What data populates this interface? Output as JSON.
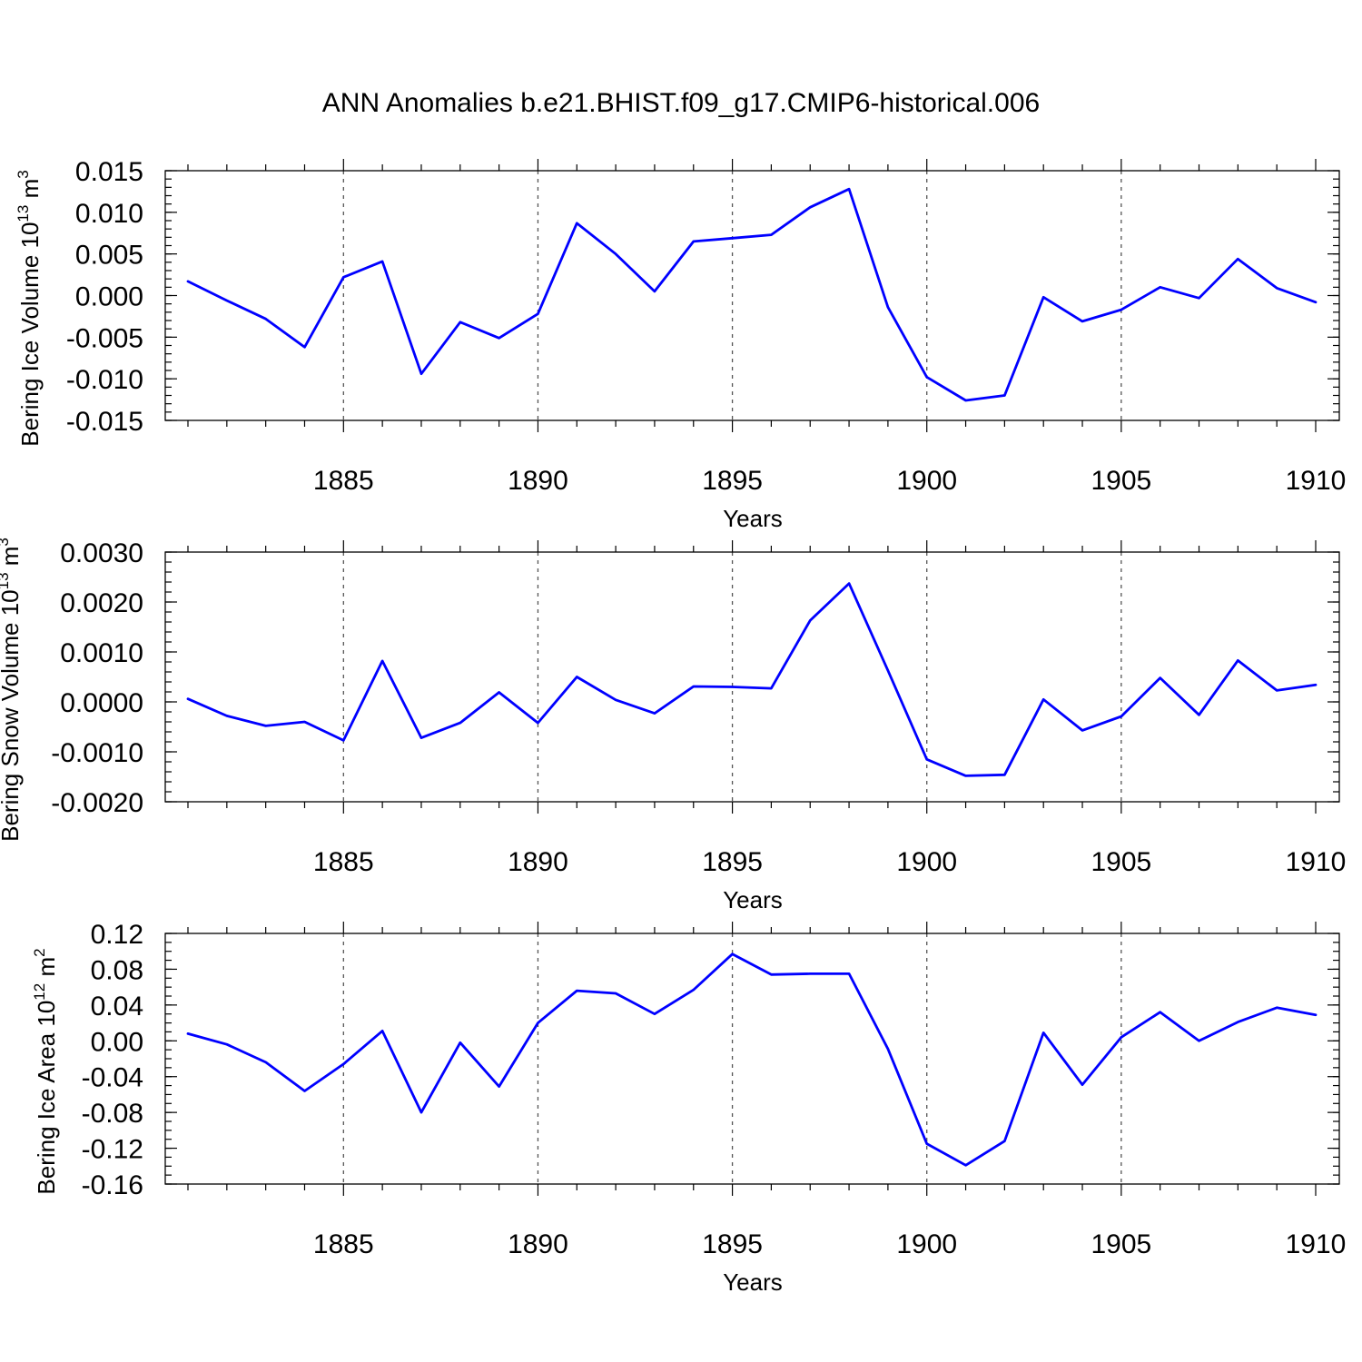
{
  "title": "ANN Anomalies b.e21.BHIST.f09_g17.CMIP6-historical.006",
  "colors": {
    "series": "#0000ff",
    "axes": "#000000",
    "grid": "#555555"
  },
  "chart_data": [
    {
      "type": "line",
      "xlabel": "Years",
      "ylabel": {
        "text": "Bering Ice Volume 10",
        "exp": "13",
        "unit": " m",
        "unit_exp": "3"
      },
      "xlim": [
        1881,
        1910
      ],
      "ylim": [
        -0.015,
        0.015
      ],
      "xticks": [
        1885,
        1890,
        1895,
        1900,
        1905,
        1910
      ],
      "yticks": [
        -0.015,
        -0.01,
        -0.005,
        0.0,
        0.005,
        0.01,
        0.015
      ],
      "ytick_labels": [
        "-0.015",
        "-0.010",
        "-0.005",
        "0.000",
        "0.005",
        "0.010",
        "0.015"
      ],
      "yminor_step": 0.001,
      "grid": true,
      "x": [
        1881,
        1882,
        1883,
        1884,
        1885,
        1886,
        1887,
        1888,
        1889,
        1890,
        1891,
        1892,
        1893,
        1894,
        1895,
        1896,
        1897,
        1898,
        1899,
        1900,
        1901,
        1902,
        1903,
        1904,
        1905,
        1906,
        1907,
        1908,
        1909,
        1910
      ],
      "values": [
        0.0017,
        -0.0006,
        -0.0028,
        -0.0062,
        0.0022,
        0.0041,
        -0.0094,
        -0.0032,
        -0.0051,
        -0.0022,
        0.0087,
        0.005,
        0.0005,
        0.0065,
        0.0069,
        0.0073,
        0.0106,
        0.0128,
        -0.0014,
        -0.0098,
        -0.0126,
        -0.012,
        -0.0002,
        -0.0031,
        -0.0017,
        0.001,
        -0.0003,
        0.0044,
        0.0009,
        -0.0008
      ]
    },
    {
      "type": "line",
      "xlabel": "Years",
      "ylabel": {
        "text": "Bering Snow Volume 10",
        "exp": "13",
        "unit": " m",
        "unit_exp": "3"
      },
      "xlim": [
        1881,
        1910
      ],
      "ylim": [
        -0.002,
        0.003
      ],
      "xticks": [
        1885,
        1890,
        1895,
        1900,
        1905,
        1910
      ],
      "yticks": [
        -0.002,
        -0.001,
        0.0,
        0.001,
        0.002,
        0.003
      ],
      "ytick_labels": [
        "-0.0020",
        "-0.0010",
        "0.0000",
        "0.0010",
        "0.0020",
        "0.0030"
      ],
      "yminor_step": 0.0002,
      "grid": true,
      "x": [
        1881,
        1882,
        1883,
        1884,
        1885,
        1886,
        1887,
        1888,
        1889,
        1890,
        1891,
        1892,
        1893,
        1894,
        1895,
        1896,
        1897,
        1898,
        1899,
        1900,
        1901,
        1902,
        1903,
        1904,
        1905,
        1906,
        1907,
        1908,
        1909,
        1910
      ],
      "values": [
        6e-05,
        -0.00028,
        -0.00048,
        -0.0004,
        -0.00077,
        0.00082,
        -0.00072,
        -0.00042,
        0.00019,
        -0.00042,
        0.0005,
        4e-05,
        -0.00023,
        0.00031,
        0.0003,
        0.00027,
        0.00163,
        0.00237,
        0.00063,
        -0.00115,
        -0.00148,
        -0.00146,
        5e-05,
        -0.00057,
        -0.00029,
        0.00048,
        -0.00026,
        0.00083,
        0.00023,
        0.00034
      ]
    },
    {
      "type": "line",
      "xlabel": "Years",
      "ylabel": {
        "text": "Bering Ice Area 10",
        "exp": "12",
        "unit": " m",
        "unit_exp": "2"
      },
      "xlim": [
        1881,
        1910
      ],
      "ylim": [
        -0.16,
        0.12
      ],
      "xticks": [
        1885,
        1890,
        1895,
        1900,
        1905,
        1910
      ],
      "yticks": [
        -0.16,
        -0.12,
        -0.08,
        -0.04,
        0.0,
        0.04,
        0.08,
        0.12
      ],
      "ytick_labels": [
        "-0.16",
        "-0.12",
        "-0.08",
        "-0.04",
        "0.00",
        "0.04",
        "0.08",
        "0.12"
      ],
      "yminor_step": 0.01,
      "grid": true,
      "x": [
        1881,
        1882,
        1883,
        1884,
        1885,
        1886,
        1887,
        1888,
        1889,
        1890,
        1891,
        1892,
        1893,
        1894,
        1895,
        1896,
        1897,
        1898,
        1899,
        1900,
        1901,
        1902,
        1903,
        1904,
        1905,
        1906,
        1907,
        1908,
        1909,
        1910
      ],
      "values": [
        0.008,
        -0.004,
        -0.024,
        -0.056,
        -0.026,
        0.011,
        -0.08,
        -0.002,
        -0.051,
        0.02,
        0.056,
        0.053,
        0.03,
        0.057,
        0.097,
        0.074,
        0.075,
        0.075,
        -0.009,
        -0.115,
        -0.139,
        -0.112,
        0.009,
        -0.049,
        0.004,
        0.032,
        0.0,
        0.021,
        0.037,
        0.029
      ]
    }
  ]
}
